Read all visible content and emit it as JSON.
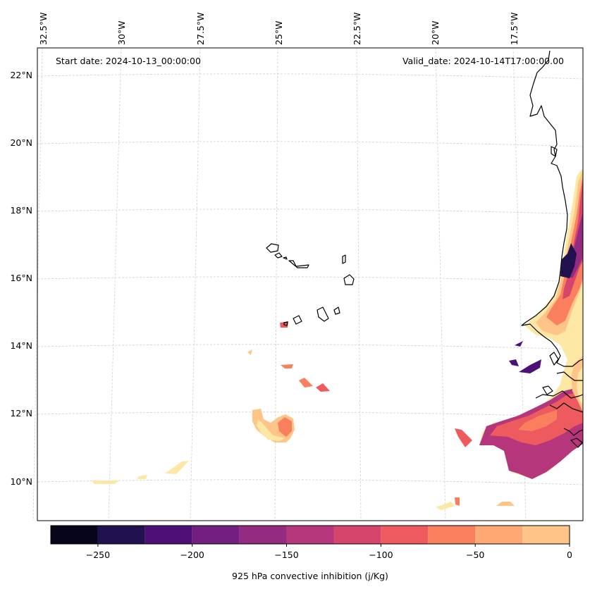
{
  "map": {
    "start_label": "Start date: 2024-10-13_00:00:00",
    "valid_label": "Valid_date: 2024-10-14T17:00:00.00",
    "lon_labels": [
      "32.5°W",
      "30°W",
      "27.5°W",
      "25°W",
      "22.5°W",
      "20°W",
      "17.5°W"
    ],
    "lat_labels": [
      "22°N",
      "20°N",
      "18°N",
      "16°N",
      "14°N",
      "12°N",
      "10°N"
    ]
  },
  "colorbar": {
    "label": "925 hPa convective inhibition (j/Kg)",
    "ticks": [
      "−250",
      "−200",
      "−150",
      "−100",
      "−50",
      "0"
    ],
    "levels": [
      -275,
      -250,
      -225,
      -200,
      -175,
      -150,
      -125,
      -100,
      -75,
      -50,
      -25,
      0
    ],
    "colors": [
      "#06051a",
      "#21114e",
      "#4c1076",
      "#721f81",
      "#932b80",
      "#b5367a",
      "#d6456c",
      "#ee5b5e",
      "#fa7f5e",
      "#fea973",
      "#fec488",
      "#fde7a4"
    ]
  }
}
